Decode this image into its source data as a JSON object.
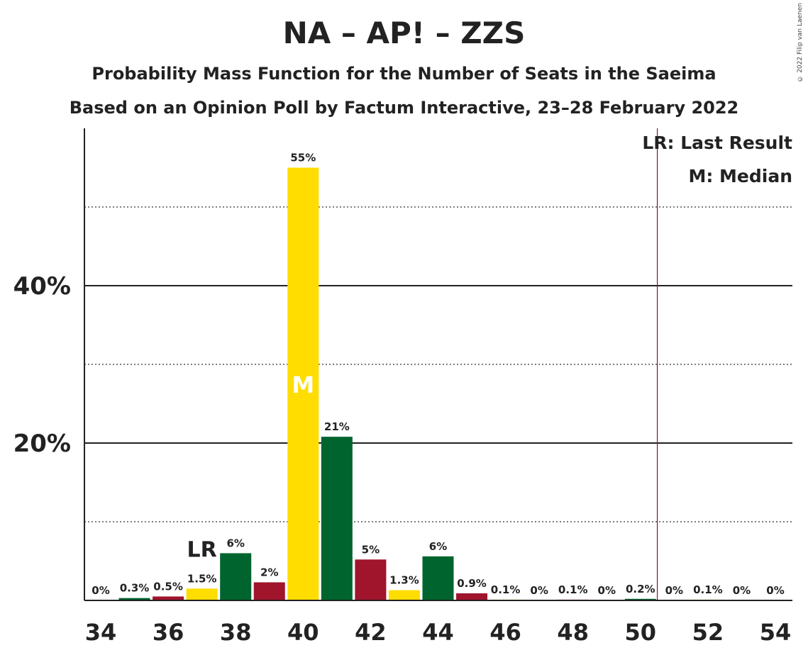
{
  "title": "NA – AP! – ZZS",
  "subtitle": "Probability Mass Function for the Number of Seats in the Saeima",
  "subtitle2": "Based on an Opinion Poll by Factum Interactive, 23–28 February 2022",
  "copyright": "© 2022 Filip van Laenen",
  "legend": {
    "last_result": "LR: Last Result",
    "median": "M: Median"
  },
  "markers": {
    "last_result_label": "LR",
    "last_result_seat": 37,
    "median_label": "M",
    "median_seat": 40,
    "majority_line_seat": 50.5
  },
  "colors": {
    "yellow": "#ffdd00",
    "green": "#00642e",
    "red": "#a0142c",
    "line": "#7a1a2a"
  },
  "chart_data": {
    "type": "bar",
    "seats": [
      34,
      35,
      36,
      37,
      38,
      39,
      40,
      41,
      42,
      43,
      44,
      45,
      46,
      47,
      48,
      49,
      50,
      51,
      52,
      53,
      54
    ],
    "values": [
      0,
      0.3,
      0.5,
      1.5,
      6,
      2.3,
      55,
      20.8,
      5.2,
      1.3,
      5.6,
      0.9,
      0.1,
      0,
      0.1,
      0,
      0.2,
      0,
      0.1,
      0,
      0
    ],
    "labels": [
      "0%",
      "0.3%",
      "0.5%",
      "1.5%",
      "6%",
      "2%",
      "55%",
      "21%",
      "5%",
      "1.3%",
      "6%",
      "0.9%",
      "0.1%",
      "0%",
      "0.1%",
      "0%",
      "0.2%",
      "0%",
      "0.1%",
      "0%",
      "0%"
    ],
    "bar_colors": [
      "yellow",
      "green",
      "red",
      "yellow",
      "green",
      "red",
      "yellow",
      "green",
      "red",
      "yellow",
      "green",
      "red",
      "yellow",
      "green",
      "red",
      "yellow",
      "green",
      "red",
      "yellow",
      "green",
      "red"
    ],
    "x_tick_labels": [
      "34",
      "36",
      "38",
      "40",
      "42",
      "44",
      "46",
      "48",
      "50",
      "52",
      "54"
    ],
    "y_tick_labels": [
      {
        "value": 20,
        "label": "20%"
      },
      {
        "value": 40,
        "label": "40%"
      }
    ],
    "ylim": [
      0,
      60
    ],
    "gridlines_major": [
      20,
      40
    ],
    "gridlines_minor": [
      10,
      30,
      50
    ]
  }
}
